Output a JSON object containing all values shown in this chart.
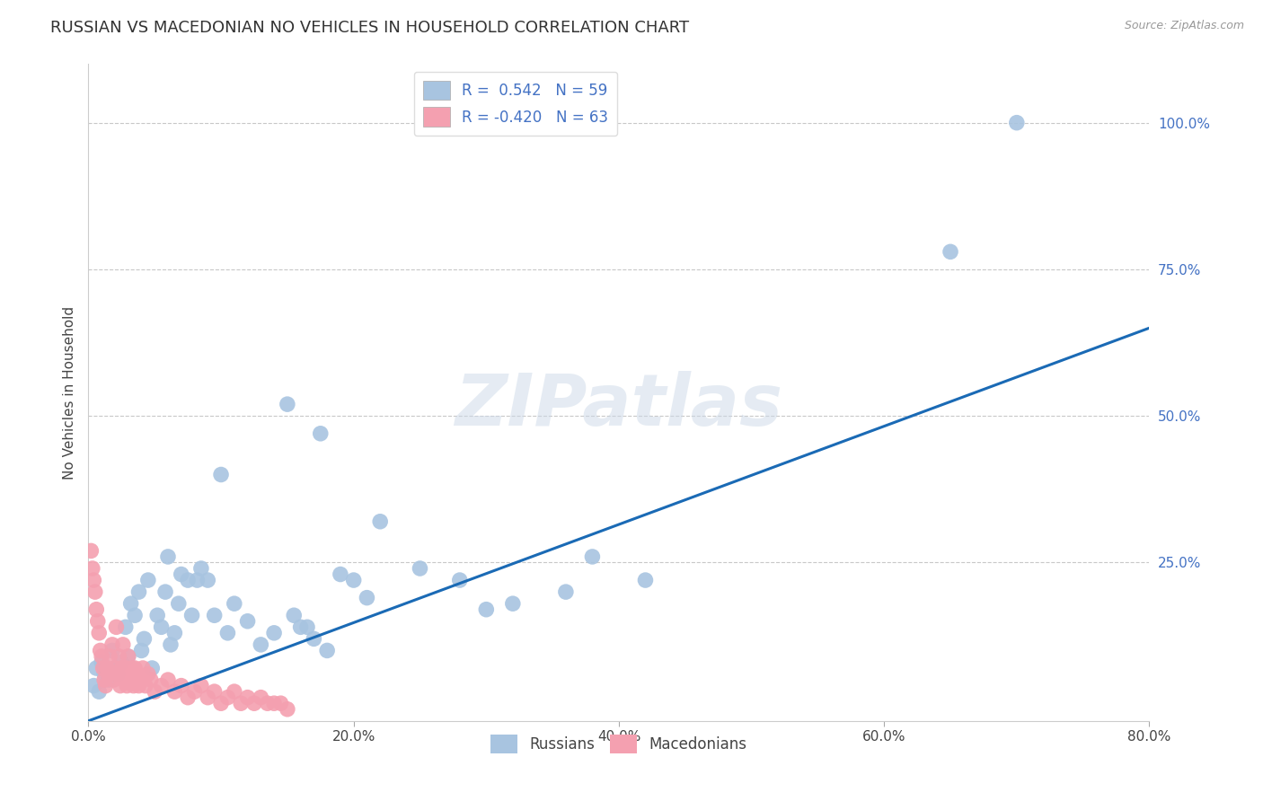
{
  "title": "RUSSIAN VS MACEDONIAN NO VEHICLES IN HOUSEHOLD CORRELATION CHART",
  "source": "Source: ZipAtlas.com",
  "ylabel": "No Vehicles in Household",
  "xlim": [
    0.0,
    0.8
  ],
  "ylim": [
    -0.02,
    1.1
  ],
  "xtick_labels": [
    "0.0%",
    "20.0%",
    "40.0%",
    "60.0%",
    "80.0%"
  ],
  "xtick_vals": [
    0.0,
    0.2,
    0.4,
    0.6,
    0.8
  ],
  "ytick_labels": [
    "25.0%",
    "50.0%",
    "75.0%",
    "100.0%"
  ],
  "ytick_vals": [
    0.25,
    0.5,
    0.75,
    1.0
  ],
  "legend_R_russian": " 0.542",
  "legend_N_russian": "59",
  "legend_R_macedonian": "-0.420",
  "legend_N_macedonian": "63",
  "russian_color": "#a8c4e0",
  "macedonian_color": "#f4a0b0",
  "trendline_color": "#1a6ab5",
  "watermark_text": "ZIPatlas",
  "russians_x": [
    0.004,
    0.006,
    0.008,
    0.01,
    0.012,
    0.015,
    0.018,
    0.02,
    0.022,
    0.025,
    0.028,
    0.03,
    0.032,
    0.035,
    0.038,
    0.04,
    0.042,
    0.045,
    0.048,
    0.052,
    0.055,
    0.058,
    0.06,
    0.062,
    0.065,
    0.068,
    0.07,
    0.075,
    0.078,
    0.082,
    0.085,
    0.09,
    0.095,
    0.1,
    0.105,
    0.11,
    0.12,
    0.13,
    0.14,
    0.15,
    0.155,
    0.16,
    0.165,
    0.17,
    0.175,
    0.18,
    0.19,
    0.2,
    0.21,
    0.22,
    0.25,
    0.28,
    0.3,
    0.32,
    0.36,
    0.38,
    0.42,
    0.65,
    0.7
  ],
  "russians_y": [
    0.04,
    0.07,
    0.03,
    0.08,
    0.06,
    0.05,
    0.1,
    0.07,
    0.06,
    0.08,
    0.14,
    0.09,
    0.18,
    0.16,
    0.2,
    0.1,
    0.12,
    0.22,
    0.07,
    0.16,
    0.14,
    0.2,
    0.26,
    0.11,
    0.13,
    0.18,
    0.23,
    0.22,
    0.16,
    0.22,
    0.24,
    0.22,
    0.16,
    0.4,
    0.13,
    0.18,
    0.15,
    0.11,
    0.13,
    0.52,
    0.16,
    0.14,
    0.14,
    0.12,
    0.47,
    0.1,
    0.23,
    0.22,
    0.19,
    0.32,
    0.24,
    0.22,
    0.17,
    0.18,
    0.2,
    0.26,
    0.22,
    0.78,
    1.0
  ],
  "macedonians_x": [
    0.002,
    0.003,
    0.004,
    0.005,
    0.006,
    0.007,
    0.008,
    0.009,
    0.01,
    0.011,
    0.012,
    0.013,
    0.014,
    0.015,
    0.016,
    0.017,
    0.018,
    0.019,
    0.02,
    0.021,
    0.022,
    0.023,
    0.024,
    0.025,
    0.026,
    0.027,
    0.028,
    0.029,
    0.03,
    0.031,
    0.032,
    0.033,
    0.034,
    0.035,
    0.036,
    0.037,
    0.038,
    0.04,
    0.041,
    0.043,
    0.045,
    0.047,
    0.05,
    0.055,
    0.06,
    0.065,
    0.07,
    0.075,
    0.08,
    0.085,
    0.09,
    0.095,
    0.1,
    0.105,
    0.11,
    0.115,
    0.12,
    0.125,
    0.13,
    0.135,
    0.14,
    0.145,
    0.15
  ],
  "macedonians_y": [
    0.27,
    0.24,
    0.22,
    0.2,
    0.17,
    0.15,
    0.13,
    0.1,
    0.09,
    0.07,
    0.05,
    0.04,
    0.07,
    0.06,
    0.09,
    0.06,
    0.11,
    0.05,
    0.07,
    0.14,
    0.06,
    0.09,
    0.04,
    0.07,
    0.11,
    0.05,
    0.07,
    0.04,
    0.09,
    0.06,
    0.05,
    0.07,
    0.04,
    0.07,
    0.05,
    0.06,
    0.04,
    0.05,
    0.07,
    0.04,
    0.06,
    0.05,
    0.03,
    0.04,
    0.05,
    0.03,
    0.04,
    0.02,
    0.03,
    0.04,
    0.02,
    0.03,
    0.01,
    0.02,
    0.03,
    0.01,
    0.02,
    0.01,
    0.02,
    0.01,
    0.01,
    0.01,
    0.0
  ],
  "trendline_x": [
    0.0,
    0.8
  ],
  "trendline_y": [
    -0.02,
    0.65
  ],
  "grid_color": "#c8c8c8",
  "bg_color": "#ffffff",
  "title_fontsize": 13,
  "axis_label_fontsize": 11,
  "tick_fontsize": 11,
  "legend_fontsize": 12
}
